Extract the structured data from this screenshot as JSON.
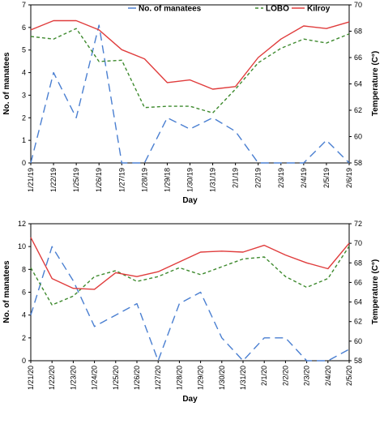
{
  "legend": [
    {
      "name": "No. of manatees",
      "color": "#4a7fd1",
      "dash": "10,6"
    },
    {
      "name": "LOBO",
      "color": "#3e8a2e",
      "dash": "4,3"
    },
    {
      "name": "Kilroy",
      "color": "#e03c3c",
      "dash": ""
    }
  ],
  "chart_data": [
    {
      "type": "line",
      "xlabel": "Day",
      "ylabel": "No. of manatees",
      "y2label": "Temperature (C°)",
      "ylim": [
        0,
        7
      ],
      "yticks": [
        0,
        1,
        2,
        3,
        4,
        5,
        6,
        7
      ],
      "y2lim": [
        58,
        70
      ],
      "y2ticks": [
        58,
        60,
        62,
        64,
        66,
        68,
        70
      ],
      "categories": [
        "1/21/19",
        "1/22/19",
        "1/25/19",
        "1/26/19",
        "1/27/19",
        "1/28/19",
        "1/29/18",
        "1/30/19",
        "1/31/19",
        "2/1/19",
        "2/2/19",
        "2/3/19",
        "2/4/19",
        "2/5/19",
        "2/6/19"
      ],
      "series": [
        {
          "name": "No. of manatees",
          "axis": "left",
          "values": [
            0,
            4,
            2,
            6.1,
            0,
            0,
            2,
            1.5,
            2,
            1.4,
            0,
            0,
            0,
            1,
            0
          ]
        },
        {
          "name": "LOBO",
          "axis": "right",
          "values": [
            67.6,
            67.4,
            68.2,
            65.7,
            65.8,
            62.2,
            62.3,
            62.3,
            61.8,
            63.6,
            65.6,
            66.7,
            67.4,
            67.1,
            67.8
          ]
        },
        {
          "name": "Kilroy",
          "axis": "right",
          "values": [
            68.1,
            68.8,
            68.8,
            68.1,
            66.6,
            65.9,
            64.1,
            64.3,
            63.6,
            63.8,
            66,
            67.4,
            68.4,
            68.2,
            68.7
          ]
        }
      ]
    },
    {
      "type": "line",
      "xlabel": "Day",
      "ylabel": "No. of manatees",
      "y2label": "Temperature (C°)",
      "ylim": [
        0,
        12
      ],
      "yticks": [
        0,
        2,
        4,
        6,
        8,
        10,
        12
      ],
      "y2lim": [
        58,
        72
      ],
      "y2ticks": [
        58,
        60,
        62,
        64,
        66,
        68,
        70,
        72
      ],
      "categories": [
        "1/21/20",
        "1/22/20",
        "1/23/20",
        "1/24/20",
        "1/25/20",
        "1/26/20",
        "1/27/20",
        "1/28/20",
        "1/29/20",
        "1/30/20",
        "1/31/20",
        "2/1/20",
        "2/2/20",
        "2/3/20",
        "2/4/20",
        "2/5/20"
      ],
      "series": [
        {
          "name": "No. of manatees",
          "axis": "left",
          "values": [
            4,
            10,
            7,
            3,
            4,
            5,
            0,
            5,
            6,
            2,
            0,
            2,
            2,
            0,
            0,
            1
          ]
        },
        {
          "name": "LOBO",
          "axis": "right",
          "values": [
            67.5,
            63.7,
            64.6,
            66.6,
            67.2,
            66.1,
            66.6,
            67.5,
            66.8,
            67.6,
            68.4,
            68.6,
            66.6,
            65.5,
            66.4,
            69.7
          ]
        },
        {
          "name": "Kilroy",
          "axis": "right",
          "values": [
            70.6,
            66.4,
            65.4,
            65.3,
            67,
            66.6,
            67.1,
            68.1,
            69.1,
            69.2,
            69.1,
            69.8,
            68.8,
            68,
            67.4,
            70
          ]
        }
      ]
    }
  ]
}
